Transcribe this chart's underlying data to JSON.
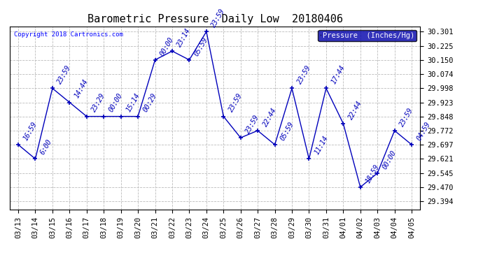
{
  "title": "Barometric Pressure  Daily Low  20180406",
  "copyright": "Copyright 2018 Cartronics.com",
  "legend_label": "Pressure  (Inches/Hg)",
  "x_labels": [
    "03/13",
    "03/14",
    "03/15",
    "03/16",
    "03/17",
    "03/18",
    "03/19",
    "03/20",
    "03/21",
    "03/22",
    "03/23",
    "03/24",
    "03/25",
    "03/26",
    "03/27",
    "03/28",
    "03/29",
    "03/30",
    "03/31",
    "04/01",
    "04/02",
    "04/03",
    "04/04",
    "04/05"
  ],
  "y_values": [
    29.697,
    29.621,
    29.998,
    29.923,
    29.848,
    29.848,
    29.848,
    29.848,
    30.15,
    30.197,
    30.15,
    30.301,
    29.848,
    29.734,
    29.772,
    29.697,
    29.998,
    29.621,
    29.998,
    29.81,
    29.47,
    29.545,
    29.772,
    29.697
  ],
  "point_labels": [
    "16:59",
    "6:00",
    "23:59",
    "14:44",
    "23:29",
    "00:00",
    "15:14",
    "00:29",
    "00:00",
    "23:14",
    "05:59",
    "23:59",
    "23:59",
    "23:59",
    "22:44",
    "05:59",
    "23:59",
    "11:14",
    "17:44",
    "22:44",
    "18:59",
    "00:00",
    "23:59",
    "04:59"
  ],
  "y_ticks": [
    29.394,
    29.47,
    29.545,
    29.621,
    29.697,
    29.772,
    29.848,
    29.923,
    29.998,
    30.074,
    30.15,
    30.225,
    30.301
  ],
  "ylim": [
    29.35,
    30.33
  ],
  "line_color": "#0000BB",
  "grid_color": "#BBBBBB",
  "bg_color": "#FFFFFF",
  "legend_bg": "#0000AA",
  "legend_fg": "#FFFFFF",
  "title_fontsize": 11,
  "label_fontsize": 7,
  "tick_fontsize": 7.5
}
